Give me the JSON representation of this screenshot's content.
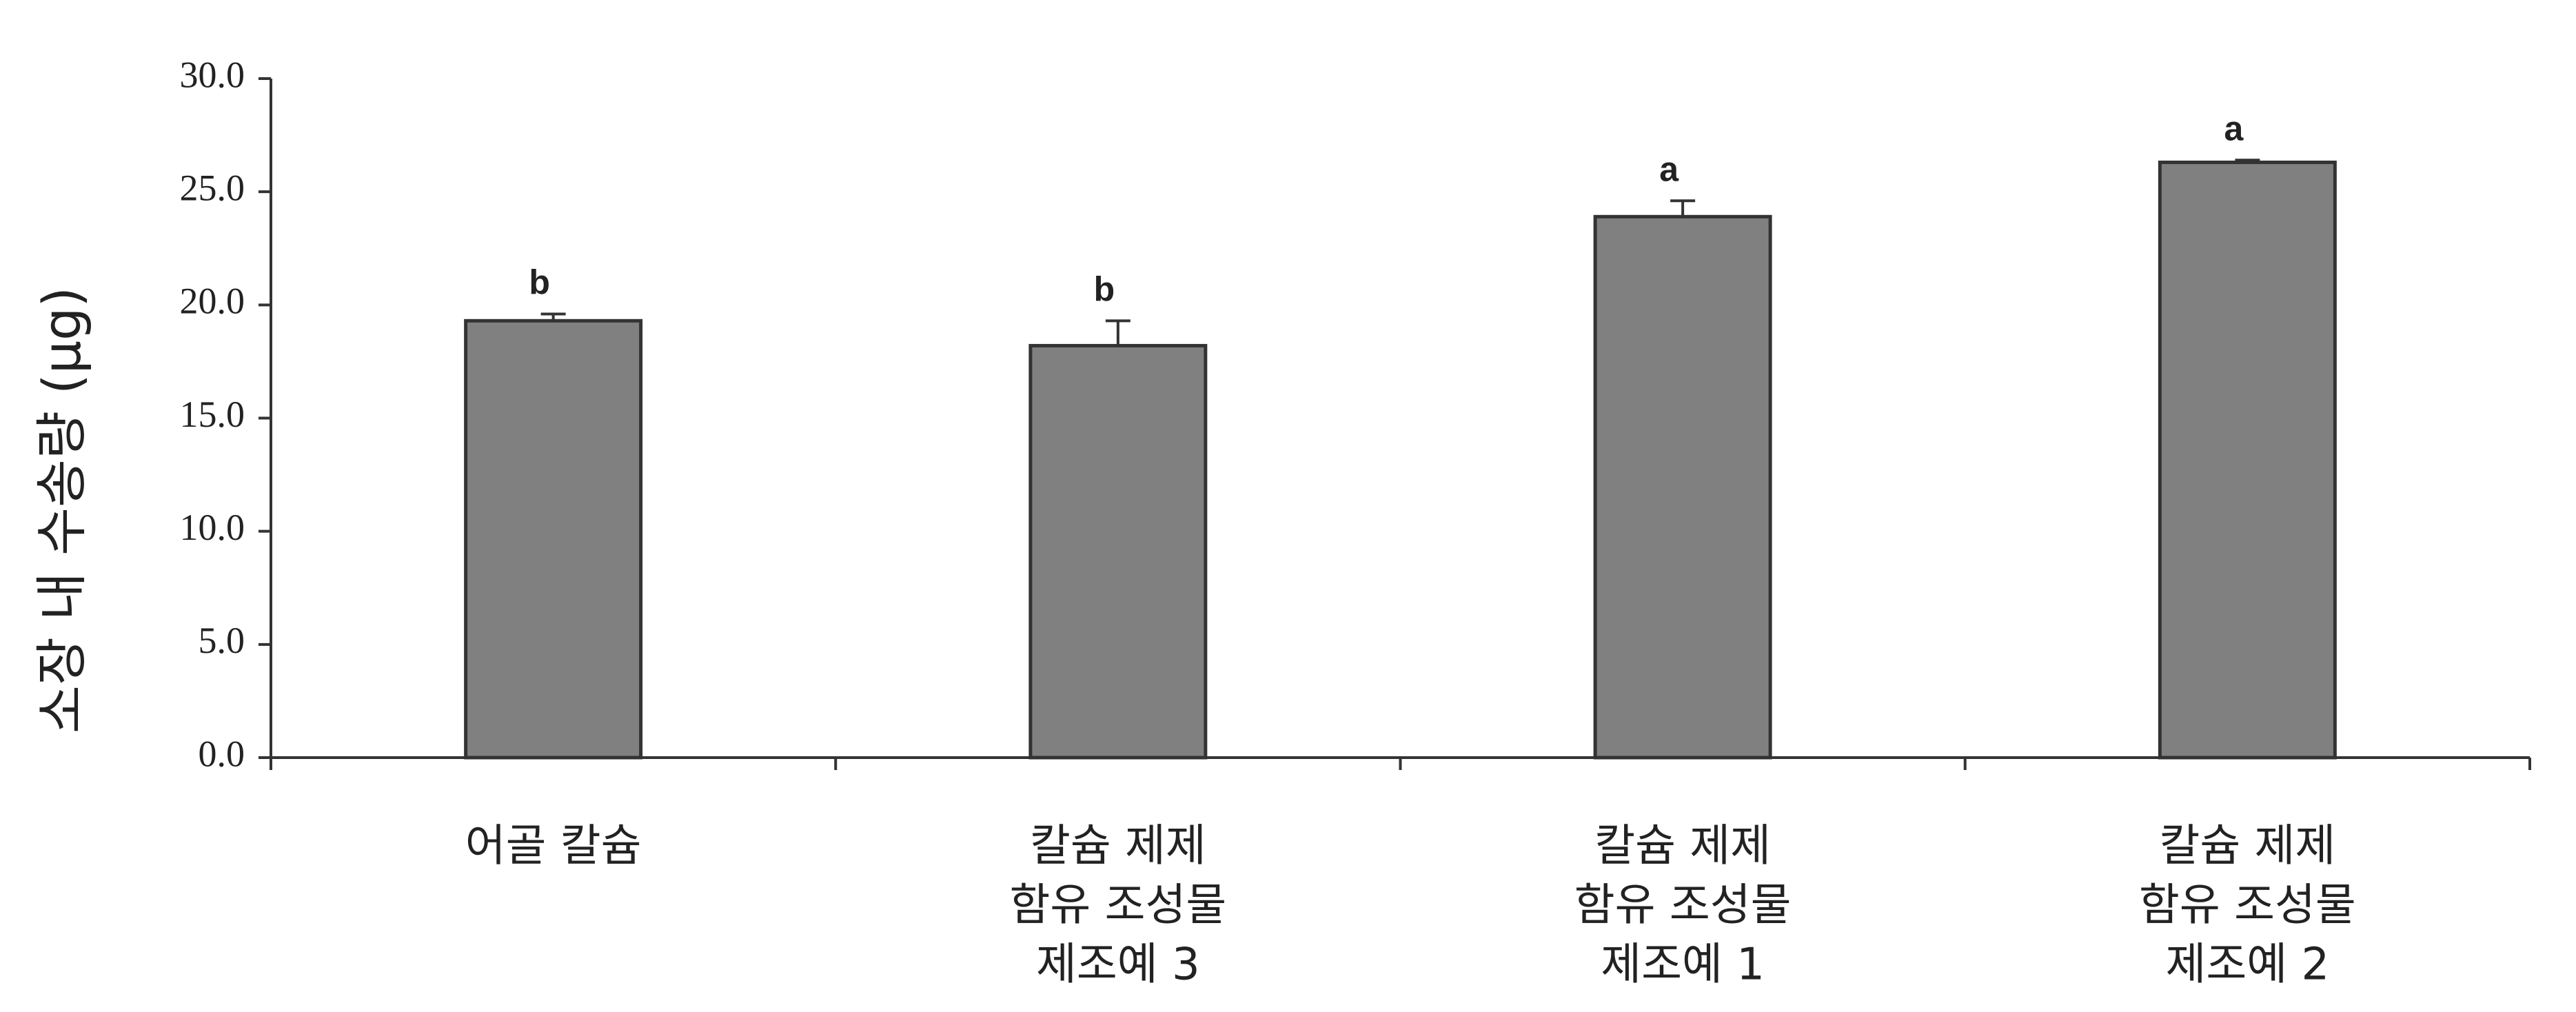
{
  "chart_data": {
    "type": "bar",
    "y_label": "소장 내 수송량 (μg)",
    "categories": [
      [
        "어골 칼슘"
      ],
      [
        "칼슘 제제",
        "함유 조성물",
        "제조예 3"
      ],
      [
        "칼슘 제제",
        "함유 조성물",
        "제조예 1"
      ],
      [
        "칼슘 제제",
        "함유 조성물",
        "제조예 2"
      ]
    ],
    "values": [
      19.3,
      18.2,
      23.9,
      26.3
    ],
    "errors": [
      0.3,
      1.1,
      0.7,
      0.1
    ],
    "annotations": [
      "b",
      "b",
      "a",
      "a"
    ],
    "color": "#808080",
    "ylim": [
      0,
      30
    ],
    "yticks": [
      {
        "value": 0,
        "label": "0.0"
      },
      {
        "value": 5,
        "label": "5.0"
      },
      {
        "value": 10,
        "label": "10.0"
      },
      {
        "value": 15,
        "label": "15.0"
      },
      {
        "value": 20,
        "label": "20.0"
      },
      {
        "value": 25,
        "label": "25.0"
      },
      {
        "value": 30,
        "label": "30.0"
      }
    ],
    "grid": false
  }
}
